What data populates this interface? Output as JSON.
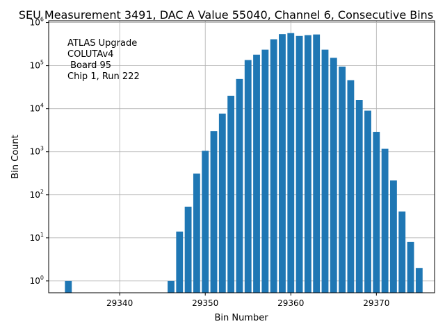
{
  "chart_data": {
    "type": "bar",
    "title": "SEU Measurement 3491, DAC A Value 55040, Channel 6, Consecutive Bins",
    "xlabel": "Bin Number",
    "ylabel": "Bin Count",
    "yscale": "log",
    "xlim": [
      29331.7,
      29376.8
    ],
    "ylim": [
      0.53,
      1100000
    ],
    "grid": true,
    "bar_color": "#1f77b4",
    "x_ticks": [
      29340,
      29350,
      29360,
      29370
    ],
    "x_tick_labels": [
      "29340",
      "29350",
      "29360",
      "29370"
    ],
    "y_ticks": [
      1,
      10,
      100,
      1000,
      10000,
      100000,
      1000000
    ],
    "y_tick_labels": [
      {
        "base": "10",
        "exp": "0"
      },
      {
        "base": "10",
        "exp": "1"
      },
      {
        "base": "10",
        "exp": "2"
      },
      {
        "base": "10",
        "exp": "3"
      },
      {
        "base": "10",
        "exp": "4"
      },
      {
        "base": "10",
        "exp": "5"
      },
      {
        "base": "10",
        "exp": "6"
      }
    ],
    "annotation_lines": [
      "ATLAS Upgrade",
      "COLUTAv4",
      " Board 95",
      "Chip 1, Run 222"
    ],
    "bars": [
      {
        "x": 29334,
        "y": 1
      },
      {
        "x": 29346,
        "y": 1
      },
      {
        "x": 29347,
        "y": 14
      },
      {
        "x": 29348,
        "y": 53
      },
      {
        "x": 29349,
        "y": 310
      },
      {
        "x": 29350,
        "y": 1050
      },
      {
        "x": 29351,
        "y": 3000
      },
      {
        "x": 29352,
        "y": 7700
      },
      {
        "x": 29353,
        "y": 20000
      },
      {
        "x": 29354,
        "y": 49000
      },
      {
        "x": 29355,
        "y": 135000
      },
      {
        "x": 29356,
        "y": 180000
      },
      {
        "x": 29357,
        "y": 235000
      },
      {
        "x": 29358,
        "y": 410000
      },
      {
        "x": 29359,
        "y": 540000
      },
      {
        "x": 29360,
        "y": 570000
      },
      {
        "x": 29361,
        "y": 490000
      },
      {
        "x": 29362,
        "y": 510000
      },
      {
        "x": 29363,
        "y": 530000
      },
      {
        "x": 29364,
        "y": 235000
      },
      {
        "x": 29365,
        "y": 152000
      },
      {
        "x": 29366,
        "y": 95000
      },
      {
        "x": 29367,
        "y": 46000
      },
      {
        "x": 29368,
        "y": 16000
      },
      {
        "x": 29369,
        "y": 9000
      },
      {
        "x": 29370,
        "y": 2900
      },
      {
        "x": 29371,
        "y": 1170
      },
      {
        "x": 29372,
        "y": 215
      },
      {
        "x": 29373,
        "y": 41
      },
      {
        "x": 29374,
        "y": 8
      },
      {
        "x": 29375,
        "y": 2
      }
    ]
  }
}
